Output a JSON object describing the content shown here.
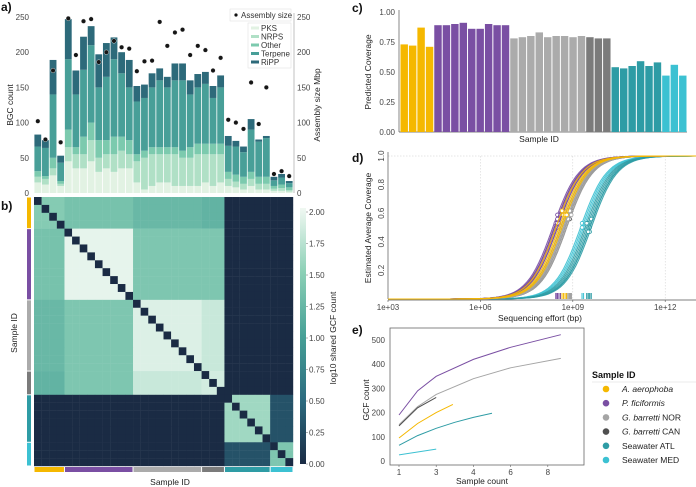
{
  "groups": [
    {
      "italic": "A. aerophoba",
      "suffix": "",
      "color": "#f5b800",
      "color_c": "#f5b800",
      "n": 4
    },
    {
      "italic": "P. ficiformis",
      "suffix": "",
      "color": "#7a4fa3",
      "color_c": "#7a4fa3",
      "n": 9
    },
    {
      "italic": "G. barretti",
      "suffix": " NOR",
      "color": "#a5a5a5",
      "color_c": "#ababab",
      "n": 9
    },
    {
      "italic": "G. barretti",
      "suffix": " CAN",
      "color": "#4f4f4f",
      "color_c": "#7b7b7b",
      "n": 3
    },
    {
      "italic": "",
      "suffix": "Seawater ATL",
      "color": "#2e9ca5",
      "color_c": "#2e9ca5",
      "n": 6
    },
    {
      "italic": "",
      "suffix": "Seawater MED",
      "color": "#3cc1d2",
      "color_c": "#3cc1d2",
      "n": 3
    }
  ],
  "legend_title": "Sample ID",
  "panel_labels": {
    "a": "a)",
    "b": "b)",
    "c": "c)",
    "d": "d)",
    "e": "e)"
  },
  "chart_data": [
    {
      "panel": "a",
      "type": "bar",
      "stacked": true,
      "ylabel": "BGC count",
      "y2label": "Assembly size Mbp",
      "ylim": [
        0,
        250
      ],
      "yticks": [
        "0",
        "50",
        "100",
        "150",
        "200",
        "250"
      ],
      "legend_position": "top-right",
      "series_colors": {
        "PKS": "#e2f2e3",
        "NRPS": "#b0e0c6",
        "Other": "#7ccaae",
        "Terpene": "#489f98",
        "RiPP": "#2d6a7a"
      },
      "series": [
        {
          "name": "PKS",
          "values": [
            15,
            12,
            25,
            10,
            45,
            35,
            35,
            45,
            30,
            35,
            30,
            35,
            35,
            15,
            5,
            10,
            15,
            15,
            10,
            10,
            10,
            10,
            15,
            10,
            15,
            10,
            8,
            5,
            10,
            5,
            5,
            3,
            3,
            2
          ]
        },
        {
          "name": "NRPS",
          "values": [
            8,
            8,
            10,
            3,
            20,
            20,
            20,
            30,
            20,
            20,
            25,
            25,
            20,
            30,
            45,
            45,
            40,
            40,
            45,
            40,
            40,
            45,
            40,
            45,
            40,
            10,
            8,
            8,
            10,
            8,
            8,
            3,
            4,
            2
          ]
        },
        {
          "name": "Other",
          "values": [
            8,
            4,
            15,
            4,
            25,
            10,
            25,
            25,
            25,
            20,
            25,
            20,
            20,
            10,
            10,
            10,
            10,
            10,
            10,
            10,
            15,
            15,
            15,
            15,
            15,
            10,
            10,
            10,
            10,
            10,
            10,
            4,
            5,
            4
          ]
        },
        {
          "name": "Terpene",
          "values": [
            35,
            40,
            90,
            26,
            100,
            75,
            95,
            110,
            75,
            90,
            110,
            90,
            75,
            75,
            75,
            85,
            95,
            85,
            95,
            100,
            75,
            80,
            85,
            65,
            80,
            37,
            40,
            35,
            60,
            50,
            55,
            8,
            10,
            6
          ]
        },
        {
          "name": "RiPP",
          "values": [
            17,
            11,
            49,
            10,
            57,
            34,
            47,
            27,
            47,
            48,
            31,
            30,
            39,
            22,
            19,
            20,
            17,
            15,
            24,
            24,
            20,
            19,
            17,
            17,
            17,
            14,
            8,
            8,
            15,
            3,
            3,
            5,
            5,
            3
          ]
        }
      ],
      "assembly_size_name": "Assembly size",
      "assembly_size": [
        102,
        76,
        174,
        72,
        248,
        196,
        244,
        247,
        186,
        200,
        216,
        207,
        205,
        173,
        187,
        188,
        243,
        209,
        228,
        232,
        196,
        209,
        203,
        174,
        192,
        104,
        100,
        91,
        157,
        98,
        150,
        27,
        31,
        24
      ]
    },
    {
      "panel": "b",
      "type": "heatmap",
      "xlabel": "Sample ID",
      "ylabel": "Sample ID",
      "colorbar_label": "log10 shared GCF count",
      "colorbar_ticks": [
        "0.00",
        "0.25",
        "0.50",
        "0.75",
        "1.00",
        "1.25",
        "1.50",
        "1.75",
        "2.00"
      ],
      "zlim": [
        0,
        2
      ],
      "group_block_values": [
        [
          1.45,
          1.35,
          1.25,
          1.2,
          0.0,
          0.0
        ],
        [
          1.35,
          1.95,
          1.4,
          1.4,
          0.0,
          0.0
        ],
        [
          1.25,
          1.4,
          1.9,
          1.8,
          0.0,
          0.0
        ],
        [
          1.2,
          1.4,
          1.8,
          1.85,
          0.0,
          0.0
        ],
        [
          0.0,
          0.0,
          0.0,
          0.0,
          1.6,
          0.3
        ],
        [
          0.0,
          0.0,
          0.0,
          0.0,
          0.3,
          1.4
        ]
      ],
      "diagonal": 0
    },
    {
      "panel": "c",
      "type": "bar",
      "xlabel": "Sample ID",
      "ylabel": "Predicted Coverage",
      "ylim": [
        0,
        1
      ],
      "yticks": [
        "0.00",
        "0.25",
        "0.50",
        "0.75",
        "1.00"
      ],
      "values": [
        0.73,
        0.72,
        0.87,
        0.71,
        0.89,
        0.89,
        0.9,
        0.91,
        0.86,
        0.86,
        0.9,
        0.89,
        0.89,
        0.78,
        0.79,
        0.8,
        0.83,
        0.79,
        0.8,
        0.8,
        0.79,
        0.8,
        0.79,
        0.78,
        0.78,
        0.54,
        0.53,
        0.55,
        0.59,
        0.55,
        0.58,
        0.47,
        0.56,
        0.47
      ]
    },
    {
      "panel": "d",
      "type": "line",
      "xlabel": "Sequencing effort (bp)",
      "ylabel": "Estimated Average Coverage",
      "xscale": "log",
      "xticks": [
        "1e+03",
        "1e+06",
        "1e+09",
        "1e+12"
      ],
      "yticks": [
        "0.2",
        "0.4",
        "0.6",
        "0.8",
        "1.0"
      ],
      "ylim": [
        0,
        1
      ],
      "grid": true,
      "curve_midpoint_log10_bp": [
        8.55,
        8.6,
        8.45,
        8.65,
        8.4,
        8.35,
        8.45,
        8.5,
        8.4,
        8.45,
        8.5,
        8.4,
        8.45,
        8.6,
        8.7,
        8.65,
        8.75,
        8.6,
        8.7,
        8.8,
        8.65,
        8.7,
        8.7,
        8.75,
        8.8,
        9.45,
        9.55,
        9.5,
        9.6,
        9.55,
        9.4,
        9.25,
        9.35,
        9.3
      ],
      "sequencing_effort_log10_bp": [
        8.7,
        8.75,
        8.65,
        8.8,
        8.45,
        8.5,
        8.55,
        8.5,
        8.45,
        8.6,
        8.55,
        8.5,
        8.5,
        8.8,
        8.85,
        8.9,
        8.85,
        8.8,
        8.9,
        8.95,
        8.85,
        8.9,
        8.9,
        8.95,
        8.9,
        9.5,
        9.55,
        9.6,
        9.55,
        9.5,
        9.45,
        9.3,
        9.35,
        9.3
      ]
    },
    {
      "panel": "e",
      "type": "line",
      "xlabel": "Sample count",
      "ylabel": "GCF count",
      "xticks": [
        "1",
        "3",
        "4",
        "6",
        "8"
      ],
      "yticks": [
        "0",
        "100",
        "200",
        "300",
        "400",
        "500"
      ],
      "ylim": [
        0,
        500
      ],
      "series": [
        {
          "group": 1,
          "x": [
            1,
            2,
            3,
            5,
            7,
            9.7
          ],
          "y": [
            190,
            290,
            350,
            420,
            470,
            522
          ]
        },
        {
          "group": 2,
          "x": [
            1,
            2,
            3,
            5,
            7,
            9.7
          ],
          "y": [
            150,
            225,
            275,
            340,
            385,
            424
          ]
        },
        {
          "group": 3,
          "x": [
            1,
            2,
            3
          ],
          "y": [
            145,
            220,
            263
          ]
        },
        {
          "group": 0,
          "x": [
            1,
            2,
            3,
            3.9
          ],
          "y": [
            95,
            155,
            200,
            234
          ]
        },
        {
          "group": 4,
          "x": [
            1,
            2,
            3,
            4,
            5,
            6
          ],
          "y": [
            65,
            105,
            135,
            160,
            180,
            197
          ]
        },
        {
          "group": 5,
          "x": [
            1,
            2,
            3
          ],
          "y": [
            25,
            37,
            49
          ]
        }
      ]
    }
  ]
}
